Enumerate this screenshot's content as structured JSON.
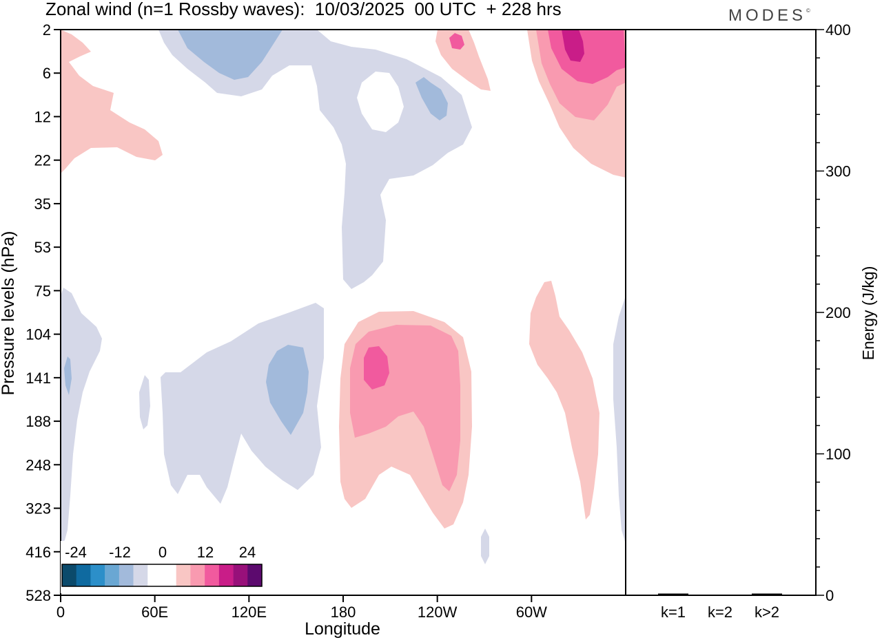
{
  "header": {
    "title": "Zonal wind (n=1 Rossby waves):  10/03/2025  00 UTC  + 228 hrs",
    "brand": "MODES",
    "brand_mark": "©"
  },
  "chart_data": [
    {
      "type": "heatmap",
      "title": "Zonal wind (n=1 Rossby waves):  10/03/2025  00 UTC  + 228 hrs",
      "xlabel": "Longitude",
      "ylabel": "Pressure levels (hPa)",
      "x_ticks": [
        "0",
        "60E",
        "120E",
        "180",
        "120W",
        "60W"
      ],
      "x_tick_degrees": [
        0,
        60,
        120,
        180,
        240,
        300
      ],
      "xlim": [
        0,
        360
      ],
      "y_ticks": [
        "2",
        "6",
        "12",
        "22",
        "35",
        "53",
        "75",
        "104",
        "141",
        "188",
        "248",
        "323",
        "416",
        "528"
      ],
      "colorbar": {
        "tick_labels": [
          "-24",
          "-12",
          "0",
          "12",
          "24"
        ],
        "colors": [
          "#0b4a6b",
          "#0f6aa0",
          "#2c8fc9",
          "#6aa7d3",
          "#a2badb",
          "#d5d8e8",
          "#ffffff",
          "#ffffff",
          "#f9c6c4",
          "#f99ab0",
          "#f15a9e",
          "#c91d88",
          "#98107a",
          "#5c0a6e"
        ]
      },
      "contour_regions": [
        {
          "level": "-4 to 0",
          "color": "#d5d8e8",
          "features": [
            "upper stratosphere 30E-180",
            "narrow column near 180 from 6 to 75 hPa",
            "lower troposphere band 60E-160E, 100-330 hPa",
            "column near 0 from 75 to 450 hPa",
            "column near 355E from 80 to 400 hPa"
          ]
        },
        {
          "level": "-8 to -4",
          "color": "#a2badb",
          "features": [
            "near 2-6 hPa around 100E",
            "near 8-12 hPa around 235E",
            "near 141 hPa around 145E"
          ]
        },
        {
          "level": "0 to 4",
          "color": "#f9c6c4",
          "features": [
            "upper left 0-60E, 2-25 hPa",
            "upper right 300E-360E, 2-25 hPa",
            "lower 180-250E, 104-350 hPa",
            "lower 300E-335E, 75-330 hPa"
          ]
        },
        {
          "level": "4 to 8",
          "color": "#f99ab0",
          "features": [
            "around 190-240E, 120-300 hPa",
            "around 310-350E, 2-12 hPa"
          ]
        },
        {
          "level": "8 to 12",
          "color": "#f15a9e",
          "features": [
            "around 195E, 130-150 hPa",
            "around 320-345E, 2-8 hPa"
          ]
        },
        {
          "level": "12 to 16",
          "color": "#c91d88",
          "features": [
            "around 325E, 2-5 hPa"
          ]
        }
      ]
    },
    {
      "type": "bar",
      "ylabel": "Energy (J/kg)",
      "ylim": [
        0,
        400
      ],
      "y_ticks": [
        "0",
        "100",
        "200",
        "300",
        "400"
      ],
      "categories": [
        "k=1",
        "k=2",
        "k>2"
      ],
      "values": [
        0.5,
        0,
        0.4
      ]
    }
  ]
}
